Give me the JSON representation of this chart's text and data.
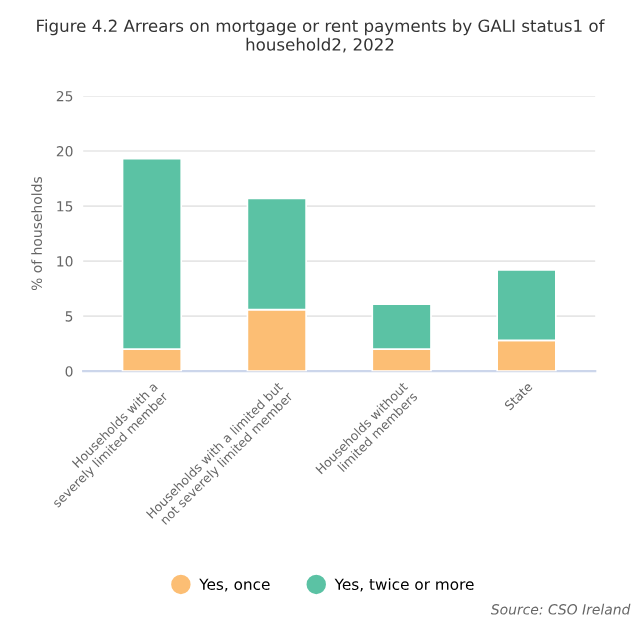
{
  "chart_data": {
    "type": "bar",
    "title": "Figure 4.2 Arrears on mortgage or rent payments by GALI status1 of household2, 2022",
    "ylabel": "% of households",
    "categories": [
      "Households with a severely limited member",
      "Households with a limited but not severely limited member",
      "Households without limited members",
      "State"
    ],
    "series": [
      {
        "name": "Yes, once",
        "color": "#fcbe74",
        "values": [
          2.0,
          5.6,
          2.0,
          2.8
        ]
      },
      {
        "name": "Yes, twice or more",
        "color": "#5bc2a4",
        "values": [
          17.3,
          10.1,
          4.1,
          6.4
        ]
      }
    ],
    "stacked": true,
    "ylim": [
      0,
      25
    ],
    "yticks": [
      0,
      5,
      10,
      15,
      20,
      25
    ],
    "grid": "y",
    "legend": "bottom",
    "annotations": [
      "Source: CSO Ireland"
    ]
  }
}
